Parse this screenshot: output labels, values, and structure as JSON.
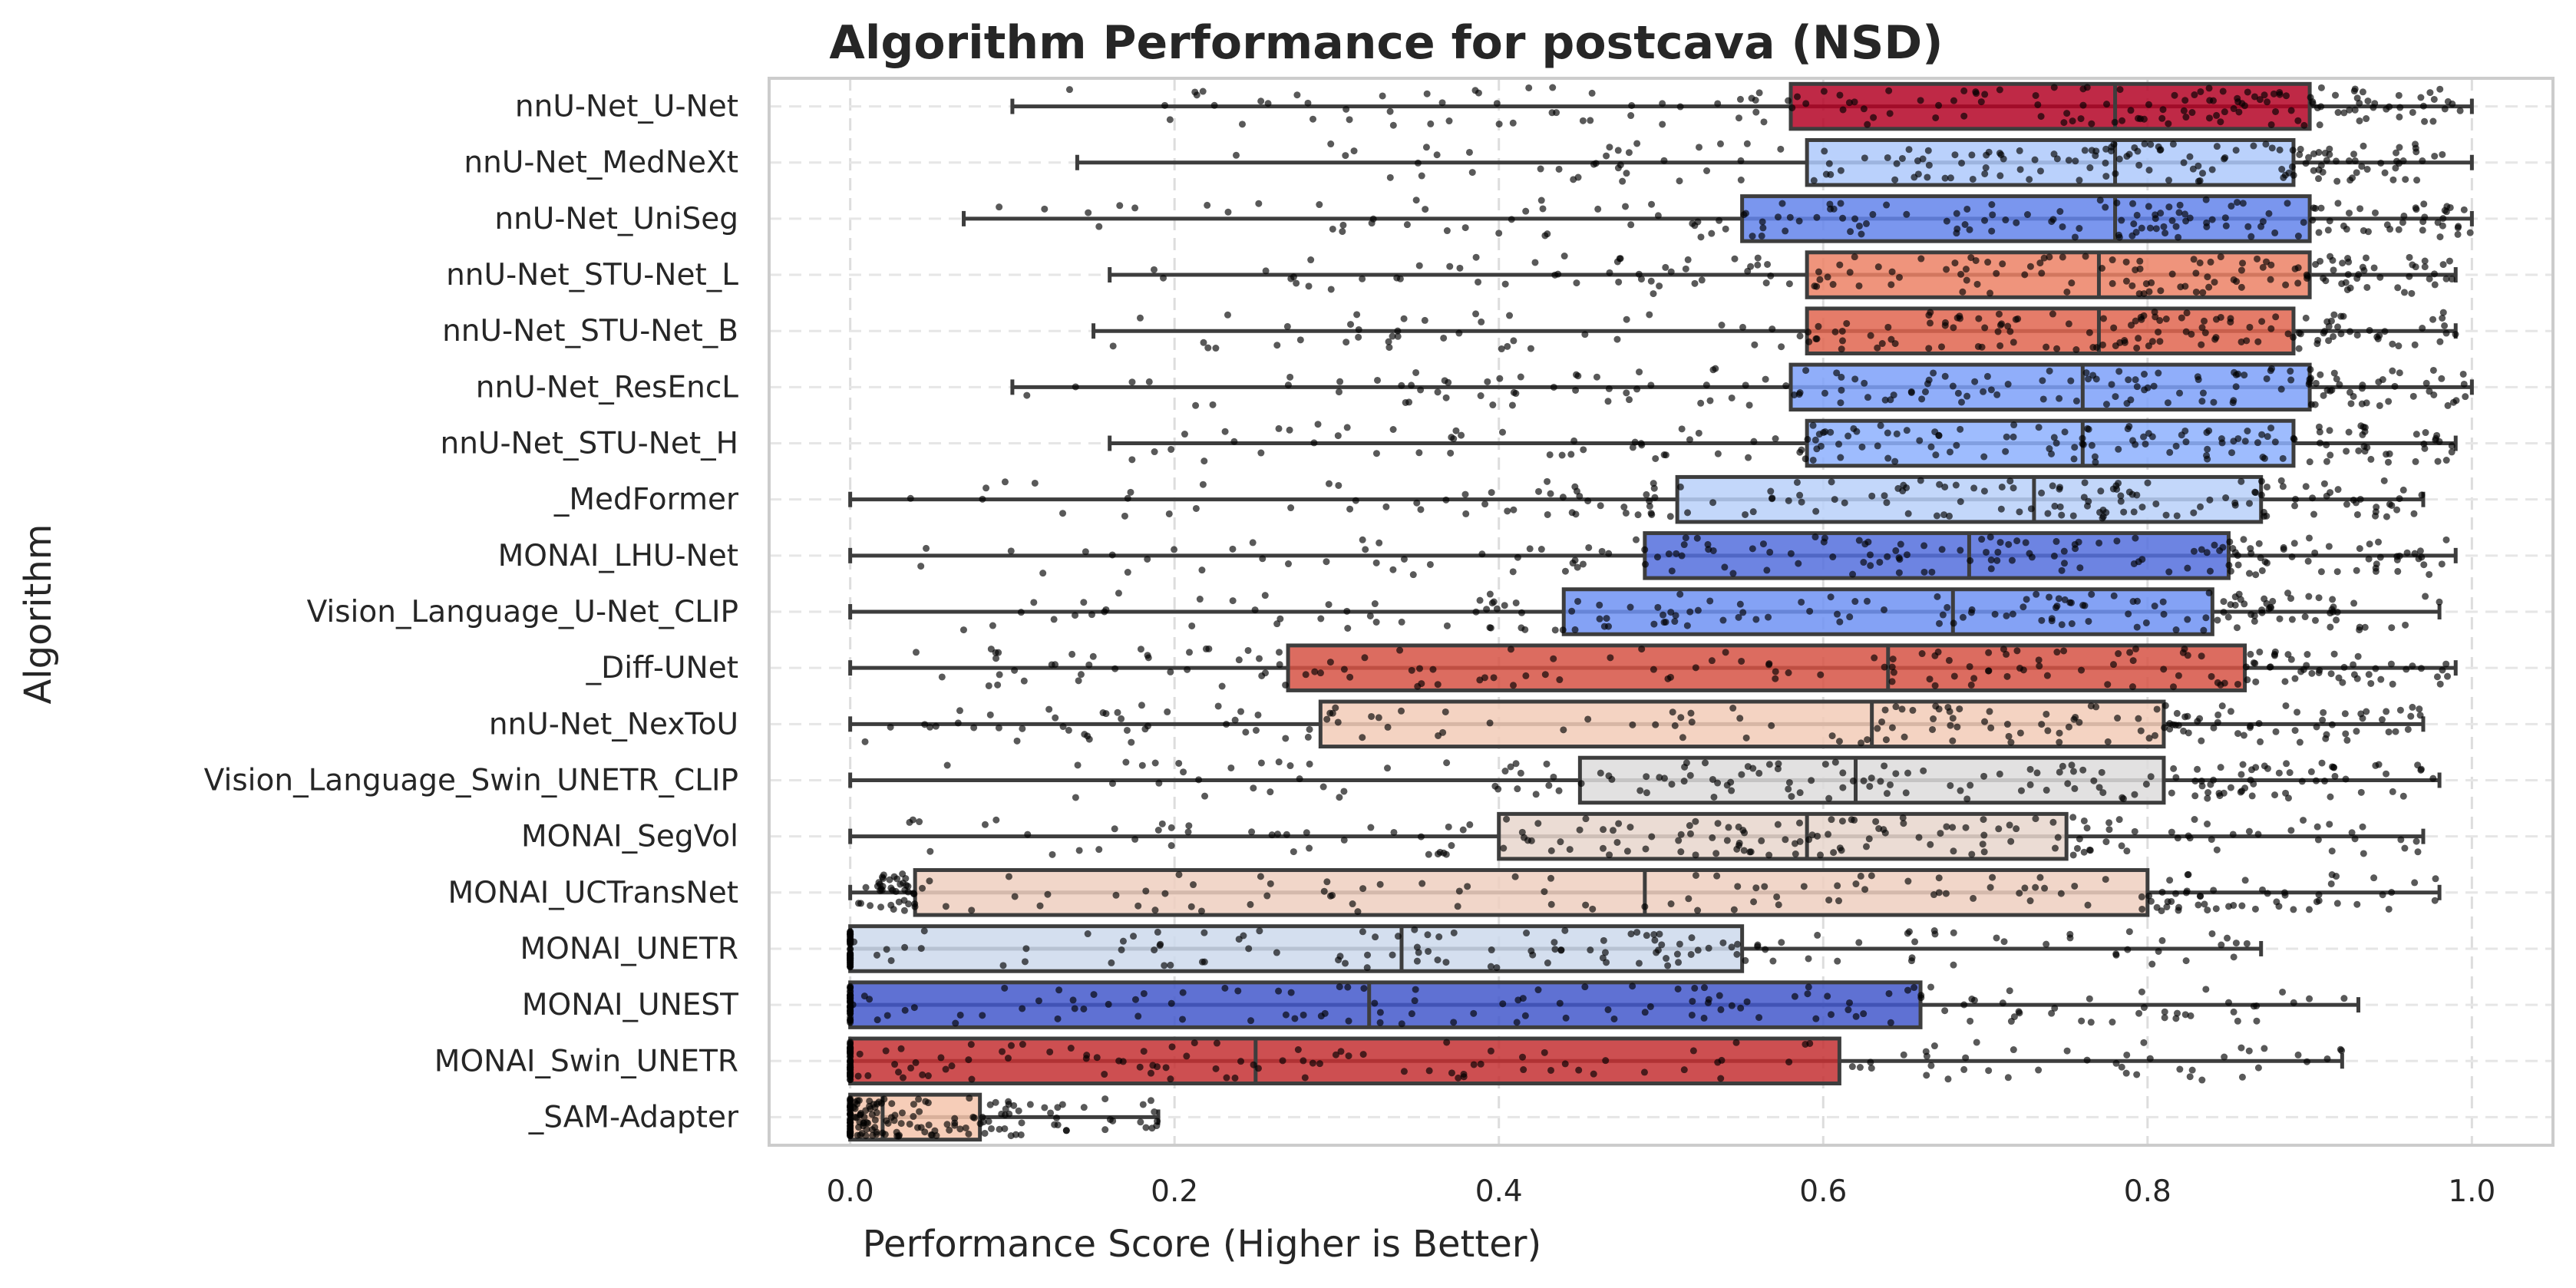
{
  "chart_data": {
    "type": "box",
    "title": "Algorithm Performance for postcava (NSD)",
    "xlabel": "Performance Score (Higher is Better)",
    "ylabel": "Algorithm",
    "xlim": [
      -0.05,
      1.05
    ],
    "x_ticks": [
      "0.0",
      "0.2",
      "0.4",
      "0.6",
      "0.8",
      "1.0"
    ],
    "x_tick_values": [
      0.0,
      0.2,
      0.4,
      0.6,
      0.8,
      1.0
    ],
    "grid": true,
    "series": [
      {
        "name": "nnU-Net_U-Net",
        "whisker_low": 0.1,
        "q1": 0.58,
        "median": 0.78,
        "q3": 0.9,
        "whisker_high": 1.0,
        "color": "#b40426"
      },
      {
        "name": "nnU-Net_MedNeXt",
        "whisker_low": 0.14,
        "q1": 0.59,
        "median": 0.78,
        "q3": 0.89,
        "whisker_high": 1.0,
        "color": "#aec9fc"
      },
      {
        "name": "nnU-Net_UniSeg",
        "whisker_low": 0.07,
        "q1": 0.55,
        "median": 0.78,
        "q3": 0.9,
        "whisker_high": 1.0,
        "color": "#6384eb"
      },
      {
        "name": "nnU-Net_STU-Net_L",
        "whisker_low": 0.16,
        "q1": 0.59,
        "median": 0.77,
        "q3": 0.9,
        "whisker_high": 0.99,
        "color": "#ec8165"
      },
      {
        "name": "nnU-Net_STU-Net_B",
        "whisker_low": 0.15,
        "q1": 0.59,
        "median": 0.77,
        "q3": 0.89,
        "whisker_high": 0.99,
        "color": "#e0654f"
      },
      {
        "name": "nnU-Net_ResEncL",
        "whisker_low": 0.1,
        "q1": 0.58,
        "median": 0.76,
        "q3": 0.9,
        "whisker_high": 1.0,
        "color": "#7da0f9"
      },
      {
        "name": "nnU-Net_STU-Net_H",
        "whisker_low": 0.16,
        "q1": 0.59,
        "median": 0.76,
        "q3": 0.89,
        "whisker_high": 0.99,
        "color": "#8db0fe"
      },
      {
        "name": "_MedFormer",
        "whisker_low": 0.0,
        "q1": 0.51,
        "median": 0.73,
        "q3": 0.87,
        "whisker_high": 0.97,
        "color": "#b9d0f9"
      },
      {
        "name": "MONAI_LHU-Net",
        "whisker_low": 0.0,
        "q1": 0.49,
        "median": 0.69,
        "q3": 0.85,
        "whisker_high": 0.99,
        "color": "#536edd"
      },
      {
        "name": "Vision_Language_U-Net_CLIP",
        "whisker_low": 0.0,
        "q1": 0.44,
        "median": 0.68,
        "q3": 0.84,
        "whisker_high": 0.98,
        "color": "#6f92f3"
      },
      {
        "name": "_Diff-UNet",
        "whisker_low": 0.0,
        "q1": 0.27,
        "median": 0.64,
        "q3": 0.86,
        "whisker_high": 0.99,
        "color": "#d65244"
      },
      {
        "name": "nnU-Net_NexToU",
        "whisker_low": 0.0,
        "q1": 0.29,
        "median": 0.63,
        "q3": 0.81,
        "whisker_high": 0.97,
        "color": "#f2cbb7"
      },
      {
        "name": "Vision_Language_Swin_UNETR_CLIP",
        "whisker_low": 0.0,
        "q1": 0.45,
        "median": 0.62,
        "q3": 0.81,
        "whisker_high": 0.98,
        "color": "#dddcdc"
      },
      {
        "name": "MONAI_SegVol",
        "whisker_low": 0.0,
        "q1": 0.4,
        "median": 0.59,
        "q3": 0.75,
        "whisker_high": 0.97,
        "color": "#e8d6cc"
      },
      {
        "name": "MONAI_UCTransNet",
        "whisker_low": 0.0,
        "q1": 0.04,
        "median": 0.49,
        "q3": 0.8,
        "whisker_high": 0.98,
        "color": "#efcfbf"
      },
      {
        "name": "MONAI_UNETR",
        "whisker_low": 0.0,
        "q1": 0.0,
        "median": 0.34,
        "q3": 0.55,
        "whisker_high": 0.87,
        "color": "#cdd9ec"
      },
      {
        "name": "MONAI_UNEST",
        "whisker_low": 0.0,
        "q1": 0.0,
        "median": 0.32,
        "q3": 0.66,
        "whisker_high": 0.93,
        "color": "#4358cb"
      },
      {
        "name": "MONAI_Swin_UNETR",
        "whisker_low": 0.0,
        "q1": 0.0,
        "median": 0.25,
        "q3": 0.61,
        "whisker_high": 0.92,
        "color": "#c43032"
      },
      {
        "name": "_SAM-Adapter",
        "whisker_low": 0.0,
        "q1": 0.0,
        "median": 0.02,
        "q3": 0.08,
        "whisker_high": 0.19,
        "color": "#f4c4ab"
      }
    ]
  }
}
